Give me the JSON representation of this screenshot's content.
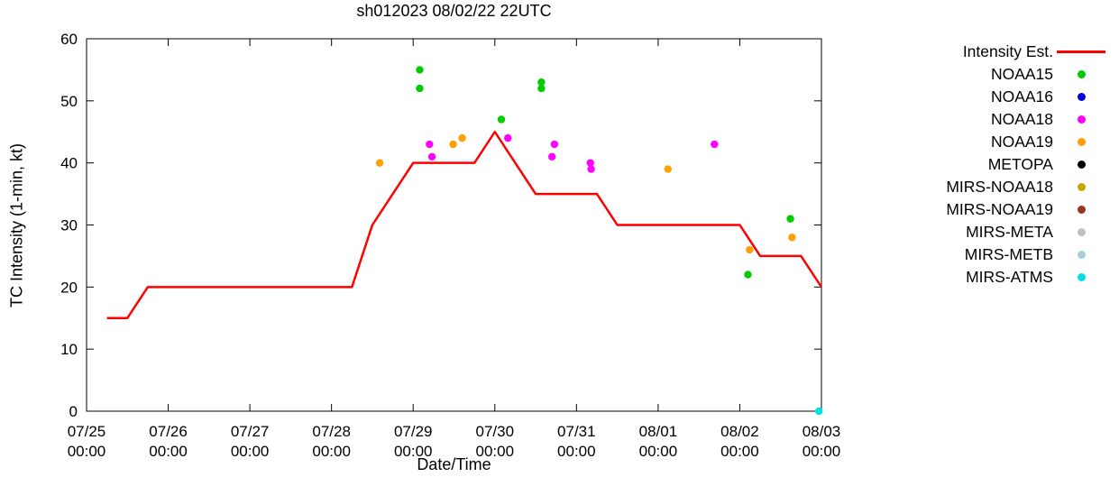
{
  "chart_data": {
    "type": "line+scatter",
    "title": "sh012023 08/02/22 22UTC",
    "xlabel": "Date/Time",
    "ylabel": "TC Intensity (1-min, kt)",
    "grid": false,
    "legend_position": "outside-right",
    "x_axis": {
      "range_days": [
        0,
        9
      ],
      "ticks": [
        {
          "pos": 0,
          "date": "07/25",
          "time": "00:00"
        },
        {
          "pos": 1,
          "date": "07/26",
          "time": "00:00"
        },
        {
          "pos": 2,
          "date": "07/27",
          "time": "00:00"
        },
        {
          "pos": 3,
          "date": "07/28",
          "time": "00:00"
        },
        {
          "pos": 4,
          "date": "07/29",
          "time": "00:00"
        },
        {
          "pos": 5,
          "date": "07/30",
          "time": "00:00"
        },
        {
          "pos": 6,
          "date": "07/31",
          "time": "00:00"
        },
        {
          "pos": 7,
          "date": "08/01",
          "time": "00:00"
        },
        {
          "pos": 8,
          "date": "08/02",
          "time": "00:00"
        },
        {
          "pos": 9,
          "date": "08/03",
          "time": "00:00"
        }
      ]
    },
    "y_axis": {
      "range": [
        0,
        60
      ],
      "ticks": [
        0,
        10,
        20,
        30,
        40,
        50,
        60
      ]
    },
    "intensity_line": {
      "name": "Intensity Est.",
      "color": "#ff0000",
      "points": [
        [
          0.25,
          15
        ],
        [
          0.5,
          15
        ],
        [
          0.75,
          20
        ],
        [
          3.25,
          20
        ],
        [
          3.5,
          30
        ],
        [
          4.0,
          40
        ],
        [
          4.75,
          40
        ],
        [
          5.0,
          45
        ],
        [
          5.5,
          35
        ],
        [
          6.25,
          35
        ],
        [
          6.5,
          30
        ],
        [
          8.0,
          30
        ],
        [
          8.25,
          25
        ],
        [
          8.75,
          25
        ],
        [
          9.0,
          20
        ]
      ]
    },
    "series": [
      {
        "name": "NOAA15",
        "color": "#00cc00",
        "points": [
          [
            4.08,
            55
          ],
          [
            4.08,
            52
          ],
          [
            5.08,
            47
          ],
          [
            5.57,
            53
          ],
          [
            5.57,
            52
          ],
          [
            8.1,
            22
          ],
          [
            8.62,
            31
          ]
        ]
      },
      {
        "name": "NOAA16",
        "color": "#0000dd",
        "points": []
      },
      {
        "name": "NOAA18",
        "color": "#ff00ff",
        "points": [
          [
            4.2,
            43
          ],
          [
            4.23,
            41
          ],
          [
            5.16,
            44
          ],
          [
            5.7,
            41
          ],
          [
            5.73,
            43
          ],
          [
            6.17,
            40
          ],
          [
            6.18,
            39
          ],
          [
            7.69,
            43
          ]
        ]
      },
      {
        "name": "NOAA19",
        "color": "#ffa000",
        "points": [
          [
            3.59,
            40
          ],
          [
            4.49,
            43
          ],
          [
            4.6,
            44
          ],
          [
            7.12,
            39
          ],
          [
            8.12,
            26
          ],
          [
            8.64,
            28
          ]
        ]
      },
      {
        "name": "METOPA",
        "color": "#000000",
        "points": []
      },
      {
        "name": "MIRS-NOAA18",
        "color": "#c8a800",
        "points": []
      },
      {
        "name": "MIRS-NOAA19",
        "color": "#993322",
        "points": []
      },
      {
        "name": "MIRS-META",
        "color": "#c0c0c0",
        "points": []
      },
      {
        "name": "MIRS-METB",
        "color": "#aaccdd",
        "points": []
      },
      {
        "name": "MIRS-ATMS",
        "color": "#00e0e0",
        "points": [
          [
            8.97,
            0
          ]
        ]
      }
    ]
  }
}
